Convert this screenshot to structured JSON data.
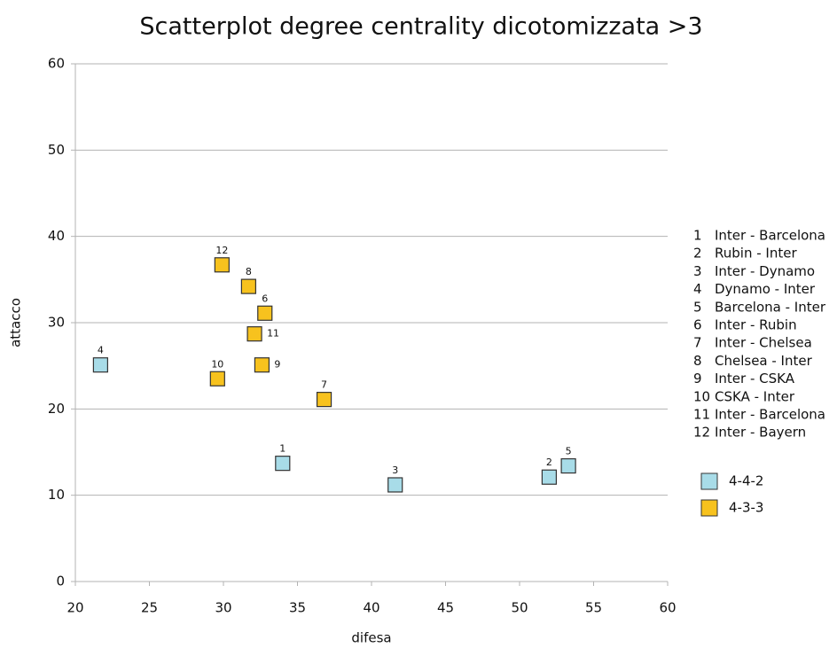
{
  "chart_data": {
    "type": "scatter",
    "title": "Scatterplot degree centrality dicotomizzata >3",
    "x_label": "difesa",
    "y_label": "attacco",
    "xlim": [
      20,
      60
    ],
    "xticks": [
      20,
      25,
      30,
      35,
      40,
      45,
      50,
      55,
      60
    ],
    "ylim": [
      0,
      60
    ],
    "yticks": [
      0,
      10,
      20,
      30,
      40,
      50,
      60
    ],
    "grid": true,
    "legend": "right",
    "series": [
      {
        "name": "4-4-2",
        "color": "#a8dce8",
        "x": [
          34.0,
          52.0,
          41.6,
          21.7,
          53.3
        ],
        "y": [
          13.7,
          12.1,
          11.2,
          25.1,
          13.4
        ],
        "labels": [
          "1",
          "2",
          "3",
          "4",
          "5"
        ]
      },
      {
        "name": "4-3-3",
        "color": "#f7c21e",
        "x": [
          32.8,
          36.8,
          31.7,
          32.6,
          29.6,
          32.1,
          29.9
        ],
        "y": [
          31.1,
          21.1,
          34.2,
          25.1,
          23.5,
          28.7,
          36.7
        ],
        "labels": [
          "6",
          "7",
          "8",
          "9",
          "10",
          "11",
          "12"
        ]
      }
    ],
    "matches": [
      {
        "number": "1",
        "label": "Inter - Barcelona"
      },
      {
        "number": "2",
        "label": "Rubin - Inter"
      },
      {
        "number": "3",
        "label": "Inter - Dynamo"
      },
      {
        "number": "4",
        "label": "Dynamo - Inter"
      },
      {
        "number": "5",
        "label": "Barcelona - Inter"
      },
      {
        "number": "6",
        "label": "Inter - Rubin"
      },
      {
        "number": "7",
        "label": "Inter - Chelsea"
      },
      {
        "number": "8",
        "label": "Chelsea - Inter"
      },
      {
        "number": "9",
        "label": "Inter - CSKA"
      },
      {
        "number": "10",
        "label": "CSKA - Inter"
      },
      {
        "number": "11",
        "label": "Inter - Barcelona"
      },
      {
        "number": "12",
        "label": "Inter - Bayern"
      }
    ]
  }
}
